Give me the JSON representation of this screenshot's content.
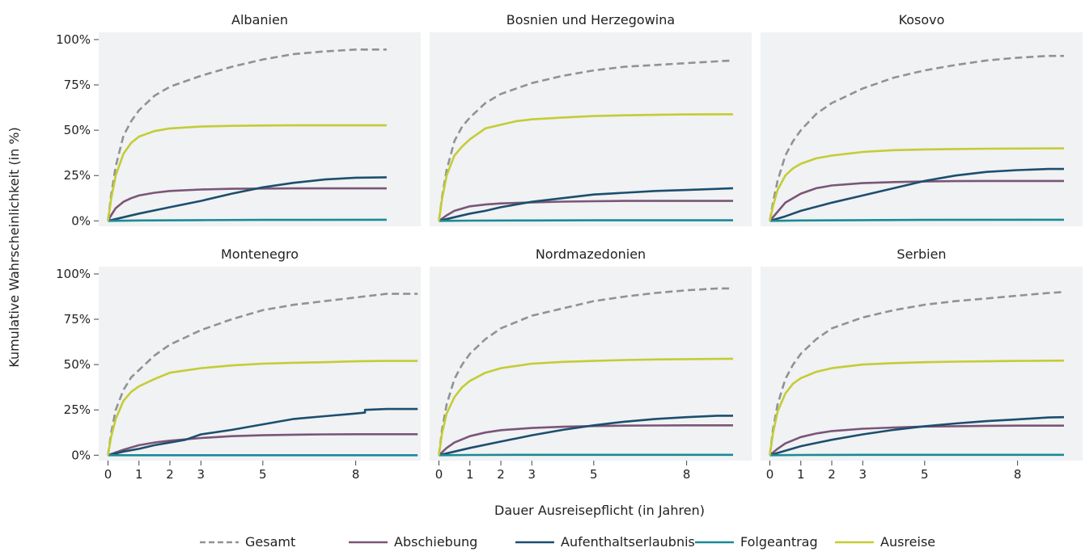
{
  "chart_data": {
    "type": "line",
    "xlabel": "Dauer Ausreisepflicht (in Jahren)",
    "ylabel": "Kumulative Wahrscheinlichkeit (in %)",
    "xticks": [
      0,
      1,
      2,
      3,
      5,
      8
    ],
    "ytick_labels": [
      "0%",
      "25%",
      "50%",
      "75%",
      "100%"
    ],
    "xlim": [
      -0.3,
      10.1
    ],
    "ylim": [
      -3,
      104
    ],
    "legend_position": "bottom",
    "series_styles": [
      {
        "name": "Gesamt",
        "color": "#8f9396",
        "dashed": true
      },
      {
        "name": "Abschiebung",
        "color": "#7b5577",
        "dashed": false
      },
      {
        "name": "Aufenthaltserlaubnis",
        "color": "#1d4e6e",
        "dashed": false
      },
      {
        "name": "Folgeantrag",
        "color": "#1a8a96",
        "dashed": false
      },
      {
        "name": "Ausreise",
        "color": "#c5cc34",
        "dashed": false
      }
    ],
    "panels": [
      {
        "title": "Albanien",
        "series": [
          {
            "name": "Gesamt",
            "x": [
              0,
              0.1,
              0.25,
              0.5,
              0.75,
              1,
              1.5,
              2,
              3,
              4,
              5,
              6,
              7,
              8,
              9
            ],
            "y": [
              0,
              14,
              30,
              47,
              55,
              61,
              69,
              74,
              80,
              85,
              89,
              92,
              93.5,
              94.5,
              94.5
            ]
          },
          {
            "name": "Abschiebung",
            "x": [
              0,
              0.1,
              0.25,
              0.5,
              0.75,
              1,
              1.5,
              2,
              3,
              4,
              5,
              6,
              7,
              8,
              9
            ],
            "y": [
              0,
              3,
              7,
              10.5,
              12.5,
              14,
              15.5,
              16.5,
              17.3,
              17.7,
              17.8,
              17.9,
              17.9,
              17.9,
              17.9
            ]
          },
          {
            "name": "Aufenthaltserlaubnis",
            "x": [
              0,
              0.5,
              1,
              2,
              3,
              4,
              5,
              6,
              7,
              8,
              9
            ],
            "y": [
              0,
              2,
              4,
              7.5,
              11,
              15,
              18.5,
              21,
              22.8,
              23.8,
              24
            ]
          },
          {
            "name": "Folgeantrag",
            "x": [
              0,
              1,
              3,
              5,
              9
            ],
            "y": [
              0,
              0.2,
              0.4,
              0.5,
              0.6
            ]
          },
          {
            "name": "Ausreise",
            "x": [
              0,
              0.1,
              0.25,
              0.5,
              0.75,
              1,
              1.5,
              2,
              3,
              4,
              5,
              6,
              7,
              8,
              9
            ],
            "y": [
              0,
              12,
              25,
              37,
              43,
              46.5,
              49.5,
              51,
              52,
              52.4,
              52.6,
              52.7,
              52.7,
              52.7,
              52.7
            ]
          }
        ]
      },
      {
        "title": "Bosnien und Herzegowina",
        "series": [
          {
            "name": "Gesamt",
            "x": [
              0,
              0.1,
              0.25,
              0.5,
              0.75,
              1,
              1.5,
              2,
              3,
              4,
              5,
              6,
              7,
              8,
              9.5
            ],
            "y": [
              0,
              13,
              28,
              44,
              52,
              57,
              65,
              70,
              76,
              80,
              83,
              85,
              86,
              87,
              88.5
            ]
          },
          {
            "name": "Abschiebung",
            "x": [
              0,
              0.25,
              0.5,
              1,
              1.5,
              2,
              3,
              4,
              5,
              6,
              7,
              8,
              9.5
            ],
            "y": [
              0,
              3,
              5.5,
              8,
              9,
              9.6,
              10.2,
              10.6,
              10.8,
              11,
              11,
              11,
              11
            ]
          },
          {
            "name": "Aufenthaltserlaubnis",
            "x": [
              0,
              0.5,
              1,
              1.5,
              2,
              3,
              4,
              5,
              6,
              7,
              8,
              9.5
            ],
            "y": [
              0,
              2,
              4,
              5.5,
              7.5,
              10.5,
              12.5,
              14.5,
              15.5,
              16.5,
              17,
              18
            ]
          },
          {
            "name": "Folgeantrag",
            "x": [
              0,
              1,
              3,
              5,
              9.5
            ],
            "y": [
              0,
              0.1,
              0.2,
              0.3,
              0.3
            ]
          },
          {
            "name": "Ausreise",
            "x": [
              0,
              0.1,
              0.25,
              0.5,
              0.75,
              1,
              1.5,
              2,
              2.5,
              3,
              4,
              5,
              6,
              7,
              8,
              9.5
            ],
            "y": [
              0,
              12,
              25,
              36,
              41,
              45,
              51,
              53,
              55,
              56,
              57,
              57.8,
              58.2,
              58.5,
              58.7,
              58.8
            ]
          }
        ]
      },
      {
        "title": "Kosovo",
        "series": [
          {
            "name": "Gesamt",
            "x": [
              0,
              0.1,
              0.25,
              0.5,
              0.75,
              1,
              1.5,
              2,
              3,
              4,
              5,
              6,
              7,
              8,
              9,
              9.5
            ],
            "y": [
              0,
              10,
              22,
              36,
              44,
              50,
              59,
              65,
              73,
              79,
              83,
              86,
              88.5,
              90,
              91,
              91
            ]
          },
          {
            "name": "Abschiebung",
            "x": [
              0,
              0.25,
              0.5,
              1,
              1.5,
              2,
              3,
              4,
              5,
              6,
              7,
              8,
              9.5
            ],
            "y": [
              0,
              5,
              10,
              15,
              18,
              19.5,
              20.8,
              21.4,
              21.7,
              21.9,
              22,
              22,
              22
            ]
          },
          {
            "name": "Aufenthaltserlaubnis",
            "x": [
              0,
              0.5,
              1,
              2,
              3,
              4,
              5,
              6,
              7,
              8,
              9,
              9.5
            ],
            "y": [
              0,
              2.5,
              5.5,
              10,
              14,
              18,
              22,
              25,
              27,
              28,
              28.6,
              28.6
            ]
          },
          {
            "name": "Folgeantrag",
            "x": [
              0,
              1,
              3,
              5,
              9.5
            ],
            "y": [
              0,
              0.2,
              0.4,
              0.5,
              0.6
            ]
          },
          {
            "name": "Ausreise",
            "x": [
              0,
              0.1,
              0.25,
              0.5,
              0.75,
              1,
              1.5,
              2,
              3,
              4,
              5,
              6,
              7,
              8,
              9.5
            ],
            "y": [
              0,
              8,
              17,
              25,
              29,
              31.5,
              34.5,
              36,
              38,
              39,
              39.4,
              39.6,
              39.8,
              39.9,
              40
            ]
          }
        ]
      },
      {
        "title": "Montenegro",
        "series": [
          {
            "name": "Gesamt",
            "x": [
              0,
              0.1,
              0.25,
              0.5,
              0.75,
              1,
              1.5,
              2,
              2.5,
              3,
              4,
              5,
              6,
              7,
              8,
              9,
              10
            ],
            "y": [
              0,
              12,
              25,
              36,
              43,
              47,
              55,
              61,
              65,
              69,
              75,
              80,
              83,
              85,
              87,
              89,
              89
            ]
          },
          {
            "name": "Abschiebung",
            "x": [
              0,
              0.25,
              0.5,
              1,
              1.5,
              2,
              3,
              4,
              5,
              6,
              7,
              8,
              10
            ],
            "y": [
              0,
              1.5,
              3,
              5.5,
              7,
              8,
              9.5,
              10.5,
              11,
              11.3,
              11.5,
              11.6,
              11.6
            ]
          },
          {
            "name": "Aufenthaltserlaubnis",
            "x": [
              0,
              0.5,
              1,
              1.5,
              2,
              2.5,
              3,
              4,
              5,
              6,
              7,
              8,
              8.3,
              8.3,
              9,
              10
            ],
            "y": [
              0,
              2,
              3.5,
              5.5,
              7,
              8.5,
              11.5,
              14,
              17,
              20,
              21.5,
              23,
              23.5,
              25,
              25.5,
              25.5
            ]
          },
          {
            "name": "Folgeantrag",
            "x": [
              0,
              10
            ],
            "y": [
              0,
              0
            ]
          },
          {
            "name": "Ausreise",
            "x": [
              0,
              0.1,
              0.25,
              0.5,
              0.75,
              1,
              1.5,
              2,
              3,
              4,
              5,
              6,
              7,
              8,
              9,
              10
            ],
            "y": [
              0,
              10,
              20,
              30,
              35,
              38,
              42,
              45.5,
              48,
              49.5,
              50.5,
              51,
              51.3,
              51.8,
              52,
              52
            ]
          }
        ]
      },
      {
        "title": "Nordmazedonien",
        "series": [
          {
            "name": "Gesamt",
            "x": [
              0,
              0.1,
              0.25,
              0.5,
              0.75,
              1,
              1.5,
              2,
              3,
              4,
              5,
              6,
              7,
              8,
              9,
              9.5
            ],
            "y": [
              0,
              14,
              28,
              42,
              50,
              56,
              64,
              70,
              77,
              81,
              85,
              87.5,
              89.5,
              91,
              92,
              92
            ]
          },
          {
            "name": "Abschiebung",
            "x": [
              0,
              0.25,
              0.5,
              1,
              1.5,
              2,
              3,
              4,
              5,
              6,
              7,
              8,
              9.5
            ],
            "y": [
              0,
              4,
              7,
              10.5,
              12.5,
              13.8,
              15,
              15.7,
              16.1,
              16.3,
              16.4,
              16.5,
              16.5
            ]
          },
          {
            "name": "Aufenthaltserlaubnis",
            "x": [
              0,
              0.5,
              1,
              2,
              3,
              4,
              5,
              6,
              7,
              8,
              9,
              9.5
            ],
            "y": [
              0,
              2,
              4,
              7.5,
              11,
              14,
              16.5,
              18.5,
              20,
              21,
              21.8,
              21.8
            ]
          },
          {
            "name": "Folgeantrag",
            "x": [
              0,
              1,
              3,
              5,
              9.5
            ],
            "y": [
              0,
              0.1,
              0.2,
              0.2,
              0.2
            ]
          },
          {
            "name": "Ausreise",
            "x": [
              0,
              0.1,
              0.25,
              0.5,
              0.75,
              1,
              1.5,
              2,
              3,
              4,
              5,
              6,
              7,
              8,
              9.5
            ],
            "y": [
              0,
              12,
              23,
              32,
              37.5,
              41,
              45.5,
              48,
              50.5,
              51.5,
              52,
              52.5,
              52.8,
              53,
              53.2
            ]
          }
        ]
      },
      {
        "title": "Serbien",
        "series": [
          {
            "name": "Gesamt",
            "x": [
              0,
              0.1,
              0.25,
              0.5,
              0.75,
              1,
              1.5,
              2,
              3,
              4,
              5,
              6,
              7,
              8,
              9,
              9.5
            ],
            "y": [
              0,
              14,
              28,
              42,
              50,
              56,
              64,
              70,
              76,
              80,
              83,
              85,
              86.5,
              88,
              89.5,
              90
            ]
          },
          {
            "name": "Abschiebung",
            "x": [
              0,
              0.25,
              0.5,
              1,
              1.5,
              2,
              3,
              4,
              5,
              6,
              7,
              8,
              9.5
            ],
            "y": [
              0,
              3.5,
              6.5,
              10,
              12,
              13.3,
              14.6,
              15.3,
              15.8,
              16,
              16.2,
              16.3,
              16.3
            ]
          },
          {
            "name": "Aufenthaltserlaubnis",
            "x": [
              0,
              0.5,
              1,
              2,
              3,
              4,
              5,
              6,
              7,
              8,
              9,
              9.5
            ],
            "y": [
              0,
              2.5,
              5,
              8.5,
              11.5,
              14,
              16,
              17.5,
              18.8,
              19.8,
              20.8,
              21
            ]
          },
          {
            "name": "Folgeantrag",
            "x": [
              0,
              1,
              3,
              5,
              9.5
            ],
            "y": [
              0,
              0.1,
              0.2,
              0.2,
              0.2
            ]
          },
          {
            "name": "Ausreise",
            "x": [
              0,
              0.1,
              0.25,
              0.5,
              0.75,
              1,
              1.5,
              2,
              3,
              4,
              5,
              6,
              7,
              8,
              9.5
            ],
            "y": [
              0,
              12,
              24,
              34,
              39.5,
              42.5,
              46,
              48,
              50,
              50.8,
              51.3,
              51.6,
              51.8,
              52,
              52.2
            ]
          }
        ]
      }
    ]
  }
}
